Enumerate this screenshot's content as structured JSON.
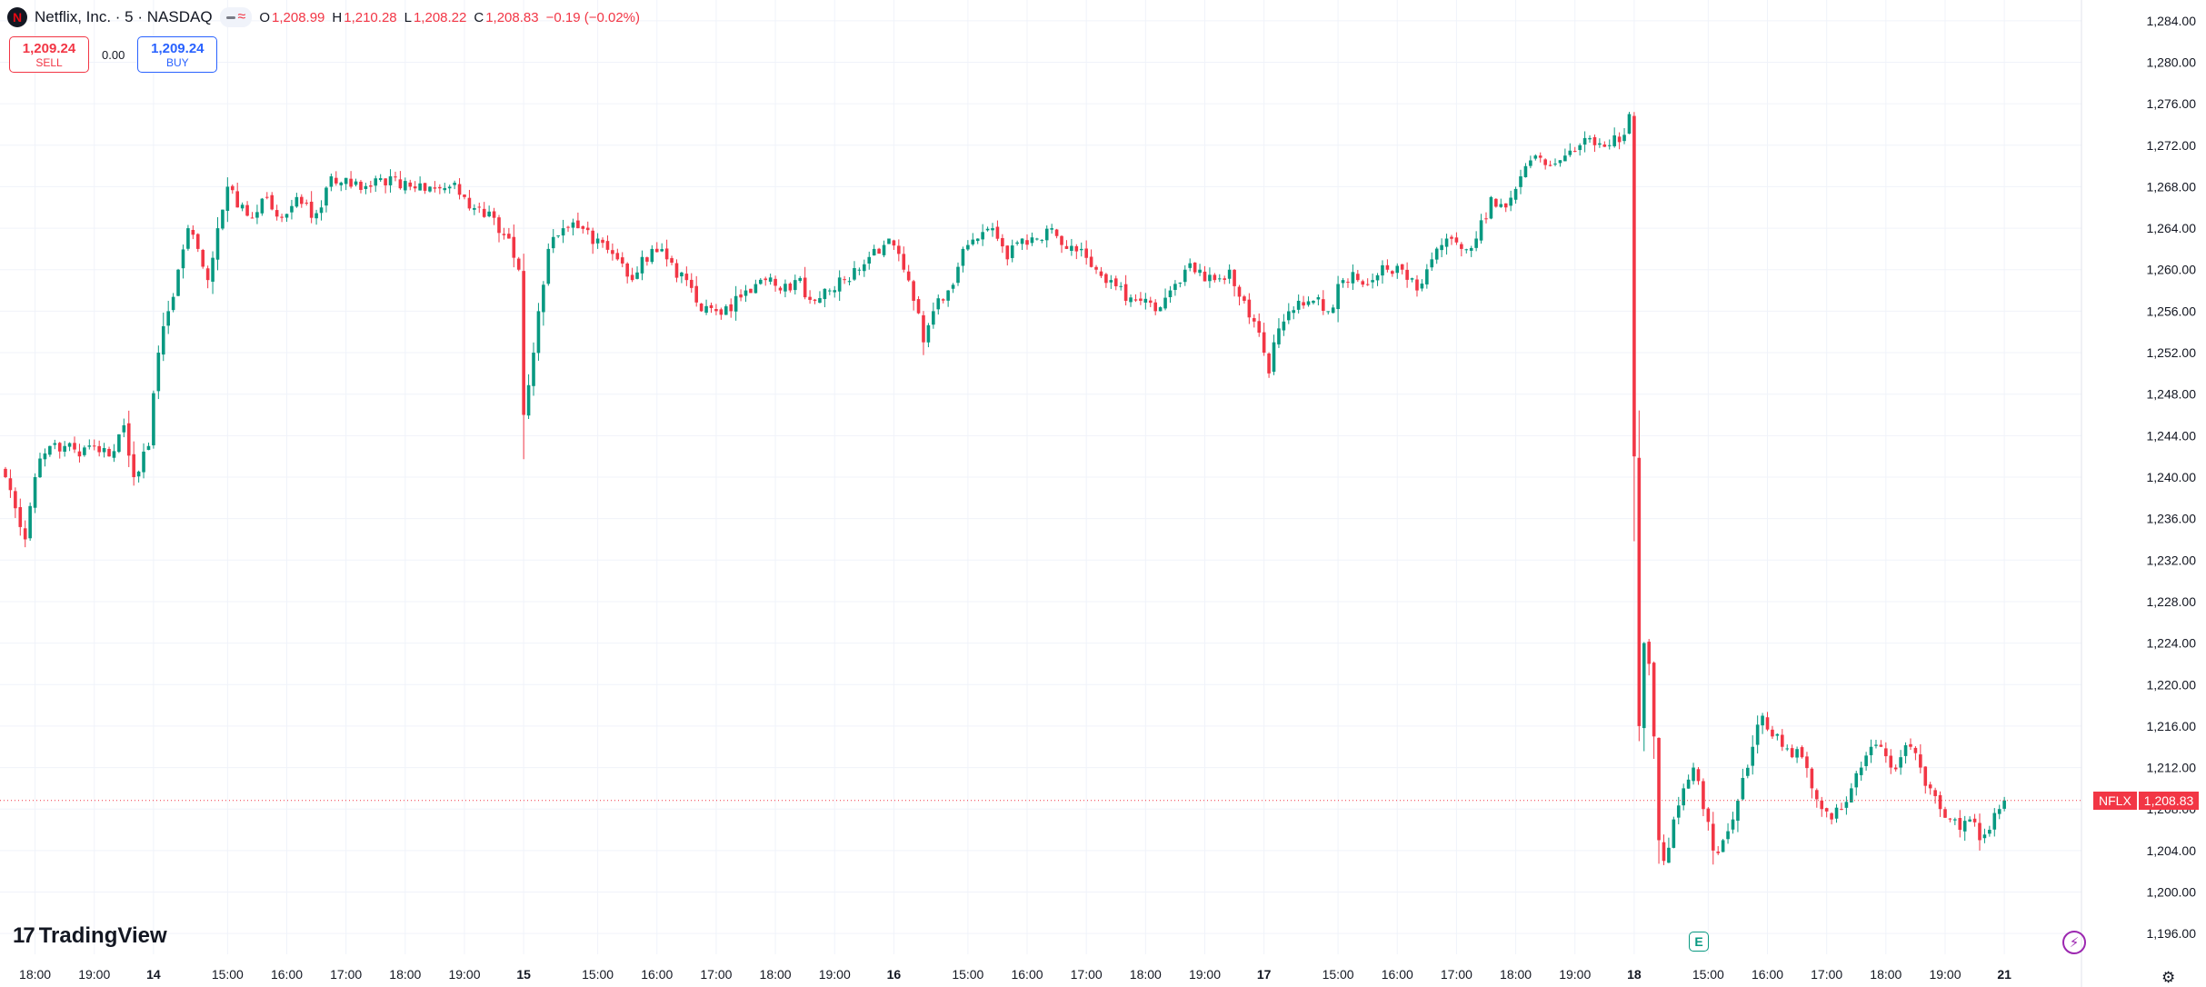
{
  "header": {
    "logo_letter": "N",
    "title": "Netflix, Inc. · 5 · NASDAQ",
    "ohlc": {
      "o_label": "O",
      "o": "1,208.99",
      "h_label": "H",
      "h": "1,210.28",
      "l_label": "L",
      "l": "1,208.22",
      "c_label": "C",
      "c": "1,208.83",
      "change": "−0.19 (−0.02%)"
    },
    "pill_icons": [
      "minus-icon",
      "wave-icon"
    ]
  },
  "trade": {
    "sell_price": "1,209.24",
    "sell_label": "SELL",
    "spread": "0.00",
    "buy_price": "1,209.24",
    "buy_label": "BUY"
  },
  "brand": {
    "logo_mark": "17",
    "name": "TradingView"
  },
  "price_tag": {
    "symbol": "NFLX",
    "value": "1,208.83"
  },
  "markers": {
    "earnings": "E",
    "bolt": "⚡"
  },
  "colors": {
    "up": "#089981",
    "down": "#f23645",
    "grid": "#f0f3fa",
    "text": "#131722",
    "last_line": "#f23645"
  },
  "chart_data": {
    "type": "candlestick",
    "title": "Netflix, Inc. · 5 · NASDAQ",
    "interval": "5m",
    "last_price": 1208.83,
    "y_range": [
      1194,
      1286
    ],
    "y_ticks": [
      "1,284.00",
      "1,280.00",
      "1,276.00",
      "1,272.00",
      "1,268.00",
      "1,264.00",
      "1,260.00",
      "1,256.00",
      "1,252.00",
      "1,248.00",
      "1,244.00",
      "1,240.00",
      "1,236.00",
      "1,232.00",
      "1,228.00",
      "1,224.00",
      "1,220.00",
      "1,216.00",
      "1,212.00",
      "1,208.00",
      "1,204.00",
      "1,200.00",
      "1,196.00"
    ],
    "x_ticks": [
      {
        "label": "18:00",
        "bar": 6
      },
      {
        "label": "19:00",
        "bar": 18
      },
      {
        "label": "14",
        "bar": 30,
        "bold": true
      },
      {
        "label": "15:00",
        "bar": 45
      },
      {
        "label": "16:00",
        "bar": 57
      },
      {
        "label": "17:00",
        "bar": 69
      },
      {
        "label": "18:00",
        "bar": 81
      },
      {
        "label": "19:00",
        "bar": 93
      },
      {
        "label": "15",
        "bar": 105,
        "bold": true
      },
      {
        "label": "15:00",
        "bar": 120
      },
      {
        "label": "16:00",
        "bar": 132
      },
      {
        "label": "17:00",
        "bar": 144
      },
      {
        "label": "18:00",
        "bar": 156
      },
      {
        "label": "19:00",
        "bar": 168
      },
      {
        "label": "16",
        "bar": 180,
        "bold": true
      },
      {
        "label": "15:00",
        "bar": 195
      },
      {
        "label": "16:00",
        "bar": 207
      },
      {
        "label": "17:00",
        "bar": 219
      },
      {
        "label": "18:00",
        "bar": 231
      },
      {
        "label": "19:00",
        "bar": 243
      },
      {
        "label": "17",
        "bar": 255,
        "bold": true
      },
      {
        "label": "15:00",
        "bar": 270
      },
      {
        "label": "16:00",
        "bar": 282
      },
      {
        "label": "17:00",
        "bar": 294
      },
      {
        "label": "18:00",
        "bar": 306
      },
      {
        "label": "19:00",
        "bar": 318
      },
      {
        "label": "18",
        "bar": 330,
        "bold": true
      },
      {
        "label": "15:00",
        "bar": 345
      },
      {
        "label": "16:00",
        "bar": 357
      },
      {
        "label": "17:00",
        "bar": 369
      },
      {
        "label": "18:00",
        "bar": 381
      },
      {
        "label": "19:00",
        "bar": 393
      },
      {
        "label": "21",
        "bar": 405,
        "bold": true
      }
    ],
    "anchors": [
      [
        0,
        1240
      ],
      [
        2,
        1237
      ],
      [
        4,
        1234
      ],
      [
        6,
        1240
      ],
      [
        9,
        1243
      ],
      [
        12,
        1243
      ],
      [
        15,
        1242
      ],
      [
        18,
        1243
      ],
      [
        21,
        1242
      ],
      [
        24,
        1245
      ],
      [
        26,
        1240
      ],
      [
        29,
        1243
      ],
      [
        31,
        1252
      ],
      [
        33,
        1256
      ],
      [
        35,
        1260
      ],
      [
        37,
        1264
      ],
      [
        39,
        1262
      ],
      [
        41,
        1259
      ],
      [
        43,
        1264
      ],
      [
        45,
        1268
      ],
      [
        47,
        1266
      ],
      [
        50,
        1265
      ],
      [
        53,
        1267
      ],
      [
        56,
        1265
      ],
      [
        59,
        1267
      ],
      [
        62,
        1265
      ],
      [
        64,
        1266
      ],
      [
        66,
        1269
      ],
      [
        70,
        1268
      ],
      [
        74,
        1268
      ],
      [
        78,
        1269
      ],
      [
        82,
        1268
      ],
      [
        86,
        1268
      ],
      [
        90,
        1268
      ],
      [
        93,
        1267
      ],
      [
        96,
        1266
      ],
      [
        99,
        1265
      ],
      [
        102,
        1263
      ],
      [
        104,
        1260
      ],
      [
        105,
        1246
      ],
      [
        107,
        1252
      ],
      [
        108,
        1256
      ],
      [
        110,
        1262
      ],
      [
        113,
        1264
      ],
      [
        116,
        1264
      ],
      [
        120,
        1263
      ],
      [
        124,
        1261
      ],
      [
        127,
        1259
      ],
      [
        131,
        1262
      ],
      [
        134,
        1261
      ],
      [
        138,
        1259
      ],
      [
        141,
        1256
      ],
      [
        144,
        1256
      ],
      [
        147,
        1256
      ],
      [
        150,
        1258
      ],
      [
        154,
        1259
      ],
      [
        157,
        1258
      ],
      [
        160,
        1259
      ],
      [
        164,
        1257
      ],
      [
        167,
        1258
      ],
      [
        170,
        1259
      ],
      [
        173,
        1260
      ],
      [
        176,
        1262
      ],
      [
        179,
        1263
      ],
      [
        182,
        1260
      ],
      [
        184,
        1257
      ],
      [
        186,
        1253
      ],
      [
        188,
        1256
      ],
      [
        191,
        1258
      ],
      [
        194,
        1262
      ],
      [
        197,
        1263
      ],
      [
        200,
        1264
      ],
      [
        203,
        1261
      ],
      [
        206,
        1263
      ],
      [
        209,
        1263
      ],
      [
        212,
        1264
      ],
      [
        215,
        1262
      ],
      [
        218,
        1262
      ],
      [
        221,
        1260
      ],
      [
        224,
        1259
      ],
      [
        227,
        1257
      ],
      [
        230,
        1257
      ],
      [
        233,
        1256
      ],
      [
        236,
        1258
      ],
      [
        239,
        1260
      ],
      [
        242,
        1260
      ],
      [
        245,
        1259
      ],
      [
        248,
        1260
      ],
      [
        251,
        1257
      ],
      [
        253,
        1255
      ],
      [
        255,
        1252
      ],
      [
        256,
        1250
      ],
      [
        257,
        1253
      ],
      [
        259,
        1255
      ],
      [
        262,
        1257
      ],
      [
        265,
        1257
      ],
      [
        268,
        1256
      ],
      [
        271,
        1259
      ],
      [
        274,
        1259
      ],
      [
        277,
        1259
      ],
      [
        280,
        1260
      ],
      [
        283,
        1260
      ],
      [
        286,
        1258
      ],
      [
        289,
        1261
      ],
      [
        292,
        1263
      ],
      [
        295,
        1262
      ],
      [
        298,
        1263
      ],
      [
        301,
        1267
      ],
      [
        304,
        1266
      ],
      [
        307,
        1269
      ],
      [
        310,
        1271
      ],
      [
        313,
        1270
      ],
      [
        316,
        1271
      ],
      [
        319,
        1272
      ],
      [
        322,
        1272
      ],
      [
        325,
        1272
      ],
      [
        328,
        1273
      ],
      [
        329,
        1275
      ],
      [
        330,
        1242
      ],
      [
        331,
        1216
      ],
      [
        332,
        1224
      ],
      [
        333,
        1222
      ],
      [
        334,
        1215
      ],
      [
        335,
        1205
      ],
      [
        336,
        1203
      ],
      [
        338,
        1207
      ],
      [
        340,
        1210
      ],
      [
        342,
        1212
      ],
      [
        344,
        1208
      ],
      [
        346,
        1204
      ],
      [
        348,
        1205
      ],
      [
        350,
        1207
      ],
      [
        352,
        1211
      ],
      [
        354,
        1214
      ],
      [
        356,
        1217
      ],
      [
        358,
        1215
      ],
      [
        360,
        1214
      ],
      [
        362,
        1213
      ],
      [
        364,
        1213
      ],
      [
        366,
        1210
      ],
      [
        368,
        1208
      ],
      [
        370,
        1207
      ],
      [
        372,
        1208
      ],
      [
        374,
        1210
      ],
      [
        376,
        1212
      ],
      [
        378,
        1214
      ],
      [
        380,
        1214
      ],
      [
        382,
        1212
      ],
      [
        384,
        1213
      ],
      [
        386,
        1214
      ],
      [
        388,
        1212
      ],
      [
        390,
        1210
      ],
      [
        392,
        1208
      ],
      [
        394,
        1207
      ],
      [
        396,
        1206
      ],
      [
        398,
        1207
      ],
      [
        400,
        1205
      ],
      [
        402,
        1206
      ],
      [
        404,
        1208
      ],
      [
        405,
        1208.83
      ]
    ]
  }
}
